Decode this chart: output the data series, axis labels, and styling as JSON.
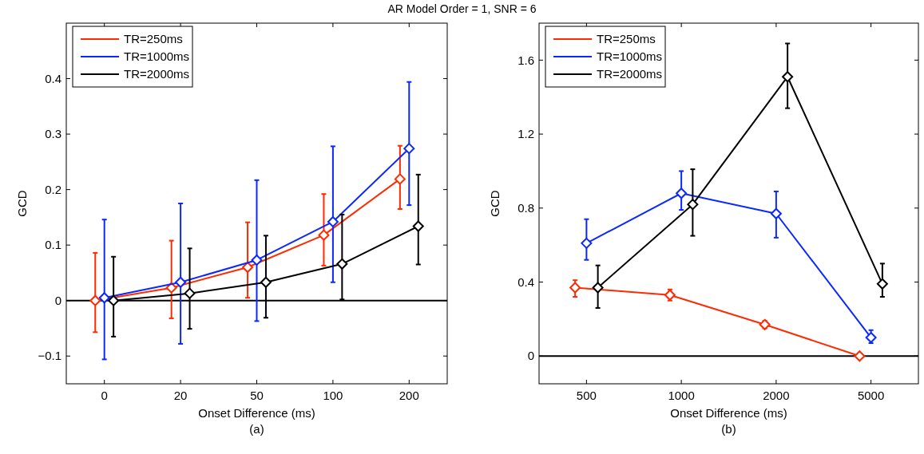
{
  "chart_data": [
    {
      "type": "line",
      "title": "AR Model Order = 1, SNR = 6",
      "xlabel": "Onset Difference (ms)",
      "ylabel": "GCD",
      "annotations": [
        "(a)"
      ],
      "categories": [
        "0",
        "20",
        "50",
        "100",
        "200"
      ],
      "ylim": [
        -0.15,
        0.5
      ],
      "yticks": [
        {
          "value": -0.1,
          "label": "−0.1"
        },
        0,
        0.1,
        0.2,
        0.3,
        0.4
      ],
      "marker": "diamond",
      "legend": "top left",
      "grid": false,
      "ref_lines": [
        {
          "axis": "y",
          "value": 0,
          "color": "#000000"
        }
      ],
      "series": [
        {
          "name": "TR=250ms",
          "color": "#ff2a00",
          "values": [
            0,
            0.023,
            0.06,
            0.118,
            0.219
          ],
          "errors": [
            [
              -0.057,
              0.086
            ],
            [
              -0.032,
              0.108
            ],
            [
              0.005,
              0.141
            ],
            [
              0.063,
              0.192
            ],
            [
              0.165,
              0.279
            ]
          ]
        },
        {
          "name": "TR=1000ms",
          "color": "#0a28ff",
          "values": [
            0.005,
            0.033,
            0.073,
            0.142,
            0.274
          ],
          "errors": [
            [
              -0.106,
              0.146
            ],
            [
              -0.078,
              0.175
            ],
            [
              -0.037,
              0.217
            ],
            [
              0.033,
              0.278
            ],
            [
              0.172,
              0.394
            ]
          ]
        },
        {
          "name": "TR=2000ms",
          "color": "#000000",
          "values": [
            0,
            0.013,
            0.033,
            0.066,
            0.134
          ],
          "errors": [
            [
              -0.065,
              0.079
            ],
            [
              -0.051,
              0.094
            ],
            [
              -0.031,
              0.117
            ],
            [
              0.002,
              0.155
            ],
            [
              0.065,
              0.227
            ]
          ]
        }
      ]
    },
    {
      "type": "line",
      "xlabel": "Onset Difference (ms)",
      "ylabel": "GCD",
      "annotations": [
        "(b)"
      ],
      "categories": [
        "500",
        "1000",
        "2000",
        "5000"
      ],
      "ylim": [
        -0.15,
        1.8
      ],
      "yticks": [
        0,
        0.4,
        0.8,
        1.2,
        1.6
      ],
      "marker": "diamond",
      "legend": "top left",
      "grid": false,
      "ref_lines": [
        {
          "axis": "y",
          "value": 0,
          "color": "#000000"
        }
      ],
      "series": [
        {
          "name": "TR=250ms",
          "color": "#ff2a00",
          "values": [
            0.37,
            0.33,
            0.17,
            0
          ],
          "errors": [
            [
              0.32,
              0.41
            ],
            [
              0.3,
              0.36
            ],
            [
              0.15,
              0.19
            ],
            null
          ]
        },
        {
          "name": "TR=1000ms",
          "color": "#0a28ff",
          "values": [
            0.61,
            0.88,
            0.77,
            0.1
          ],
          "errors": [
            [
              0.52,
              0.74
            ],
            [
              0.79,
              1.0
            ],
            [
              0.64,
              0.89
            ],
            [
              0.07,
              0.14
            ]
          ]
        },
        {
          "name": "TR=2000ms",
          "color": "#000000",
          "values": [
            0.37,
            0.82,
            1.51,
            0.39
          ],
          "errors": [
            [
              0.26,
              0.49
            ],
            [
              0.65,
              1.01
            ],
            [
              1.34,
              1.69
            ],
            [
              0.32,
              0.5
            ]
          ]
        }
      ]
    }
  ]
}
